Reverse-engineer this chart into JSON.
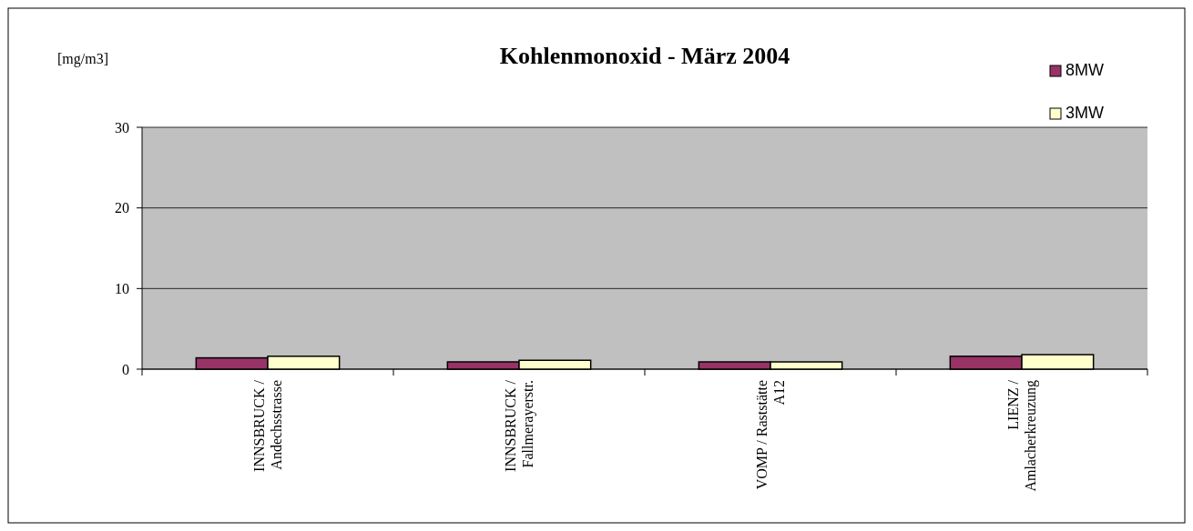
{
  "chart_data": {
    "type": "bar",
    "title": "Kohlenmonoxid - März 2004",
    "ylabel": "[mg/m3]",
    "categories": [
      "INNSBRUCK /\nAndechsstrasse",
      "INNSBRUCK /\nFallmerayerstr.",
      "VOMP / Raststätte\nA12",
      "LIENZ /\nAmlacherkreuzung"
    ],
    "series": [
      {
        "name": "8MW",
        "color": "#993366",
        "values": [
          1.4,
          0.9,
          0.9,
          1.6
        ]
      },
      {
        "name": "3MW",
        "color": "#ffffcc",
        "values": [
          1.6,
          1.1,
          0.9,
          1.8
        ]
      }
    ],
    "ylim": [
      0,
      30
    ],
    "yticks": [
      0,
      10,
      20,
      30
    ],
    "grid": "y",
    "legend": "top right"
  }
}
